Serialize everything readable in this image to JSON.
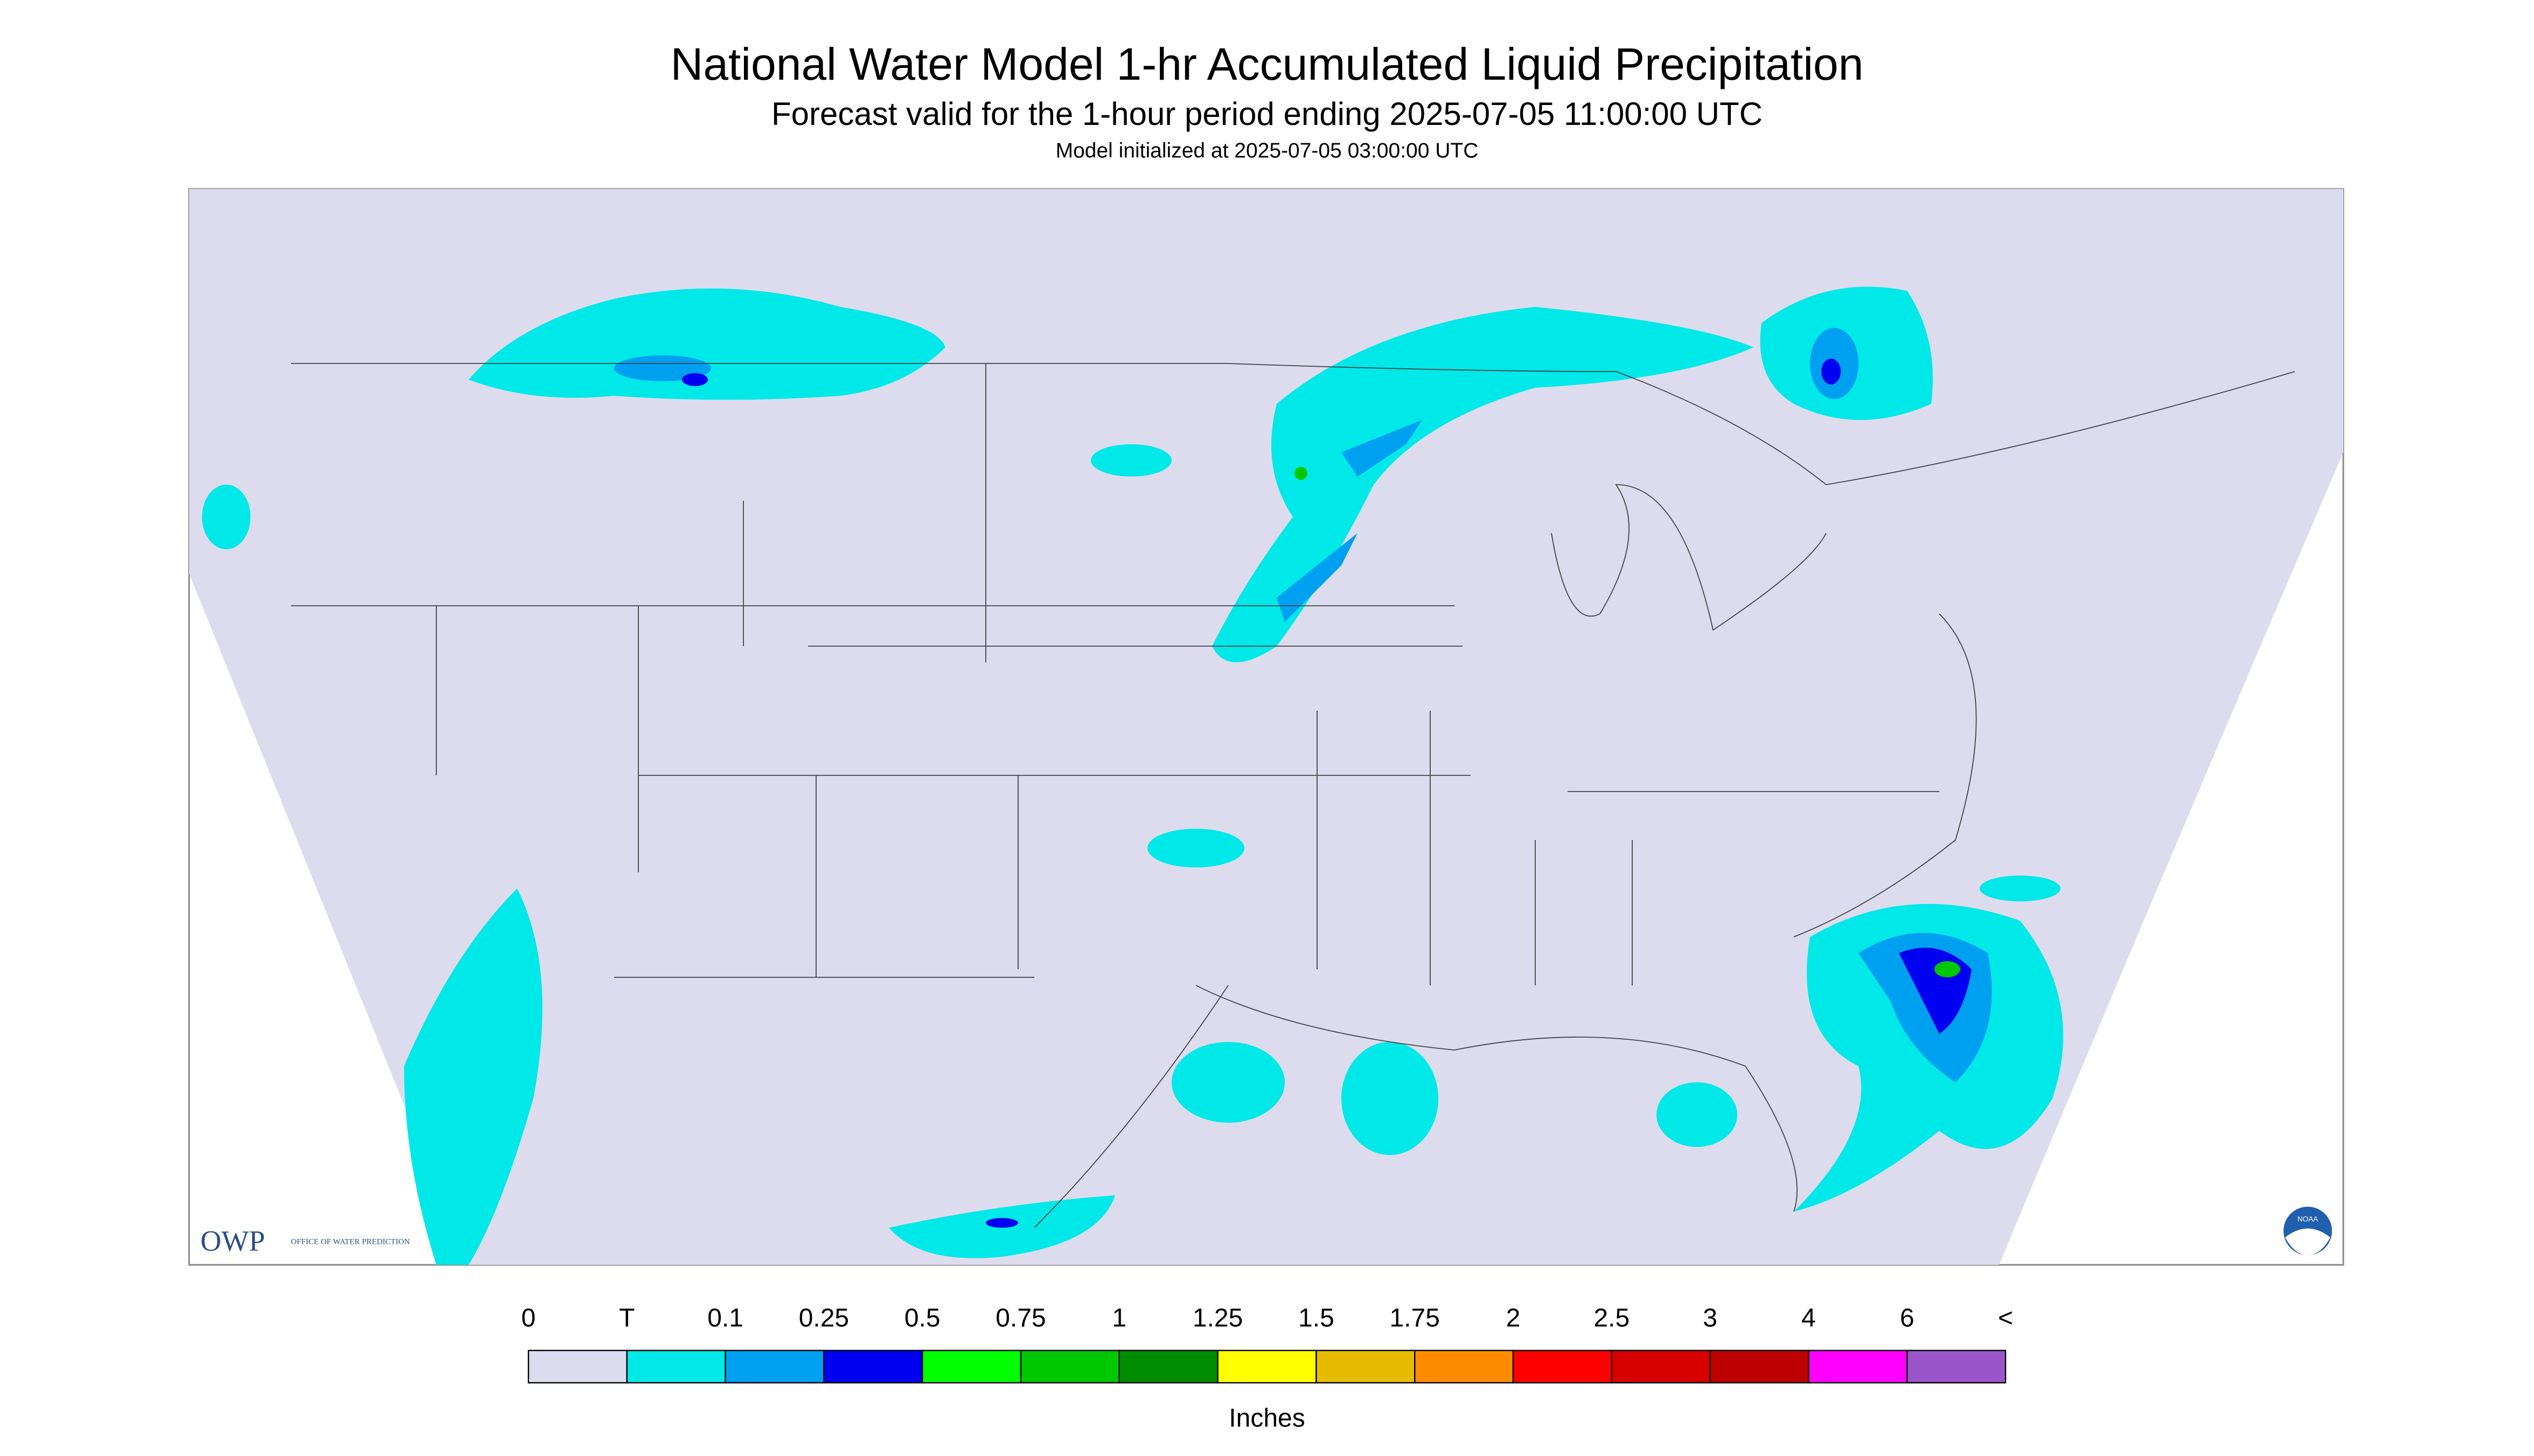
{
  "header": {
    "title": "National Water Model 1-hr Accumulated Liquid Precipitation",
    "subtitle": "Forecast valid for the 1-hour period ending 2025-07-05 11:00:00 UTC",
    "initialized": "Model initialized at 2025-07-05 03:00:00 UTC"
  },
  "legend": {
    "labels": [
      "0",
      "T",
      "0.1",
      "0.25",
      "0.5",
      "0.75",
      "1",
      "1.25",
      "1.5",
      "1.75",
      "2",
      "2.5",
      "3",
      "4",
      "6",
      "<"
    ],
    "colors": [
      "#dcdcee",
      "#00e8e8",
      "#00a0f0",
      "#0000f0",
      "#00ff00",
      "#00c800",
      "#008c00",
      "#ffff00",
      "#e6bc00",
      "#ff8c00",
      "#ff0000",
      "#d70000",
      "#bd0000",
      "#ff00ff",
      "#9955c9"
    ],
    "unit": "Inches"
  },
  "logos": {
    "owp": "OWP",
    "owp_text": "OFFICE OF WATER PREDICTION",
    "noaa": "NOAA"
  }
}
